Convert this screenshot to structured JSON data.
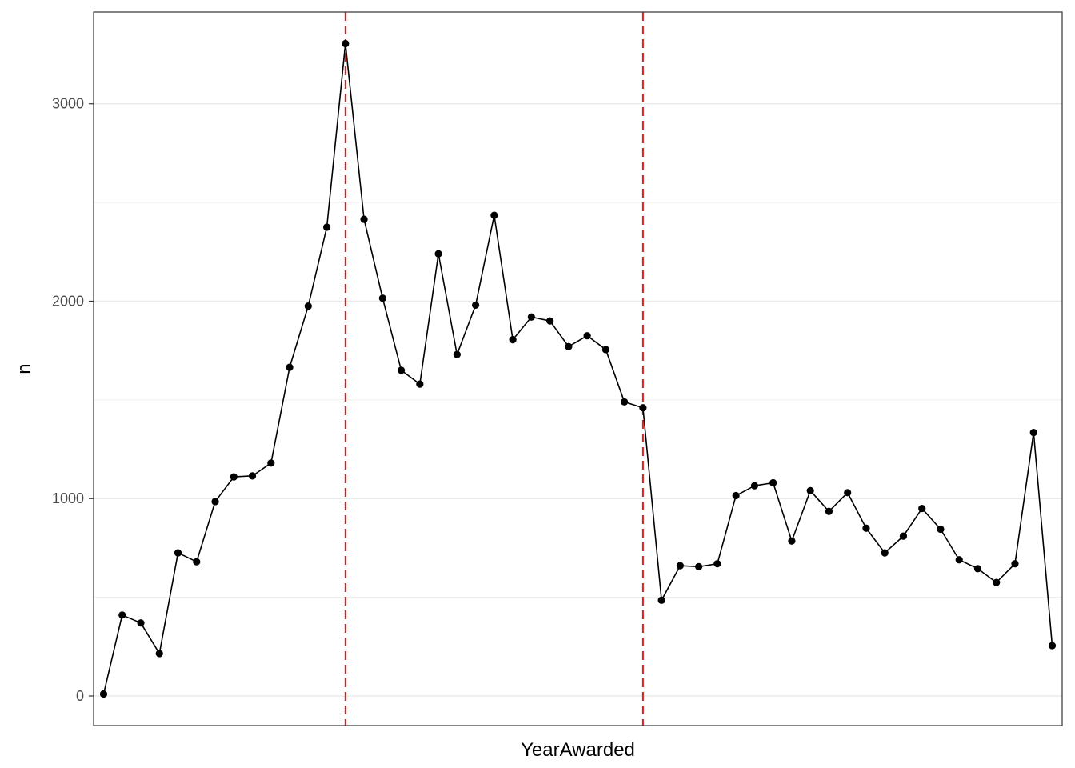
{
  "chart_data": {
    "type": "line",
    "title": "",
    "xlabel": "YearAwarded",
    "ylabel": "n",
    "ylim": [
      -150,
      3465
    ],
    "y_ticks": [
      0,
      1000,
      2000,
      3000
    ],
    "y_tick_labels": [
      "0",
      "1000",
      "2000",
      "3000"
    ],
    "grid": true,
    "x_tick_labels_visible": false,
    "series": [
      {
        "values": [
          10,
          410,
          370,
          215,
          725,
          680,
          985,
          1110,
          1115,
          1180,
          1665,
          1975,
          2375,
          3305,
          2415,
          2015,
          1650,
          1580,
          2240,
          1730,
          1980,
          2435,
          1805,
          1920,
          1900,
          1770,
          1825,
          1755,
          1490,
          1460,
          485,
          660,
          655,
          670,
          1015,
          1065,
          1080,
          785,
          1040,
          935,
          1030,
          850,
          725,
          810,
          950,
          845,
          690,
          645,
          575,
          670,
          1335,
          255
        ]
      }
    ],
    "reference_lines": [
      {
        "orientation": "vertical",
        "index": 13,
        "color": "#e41a1c",
        "style": "dashed"
      },
      {
        "orientation": "vertical",
        "index": 29,
        "color": "#e41a1c",
        "style": "dashed"
      }
    ],
    "colors": {
      "line": "#000000",
      "point": "#000000",
      "reference": "#e41a1c",
      "grid": "#ebebeb",
      "panel_border": "#333333"
    }
  }
}
